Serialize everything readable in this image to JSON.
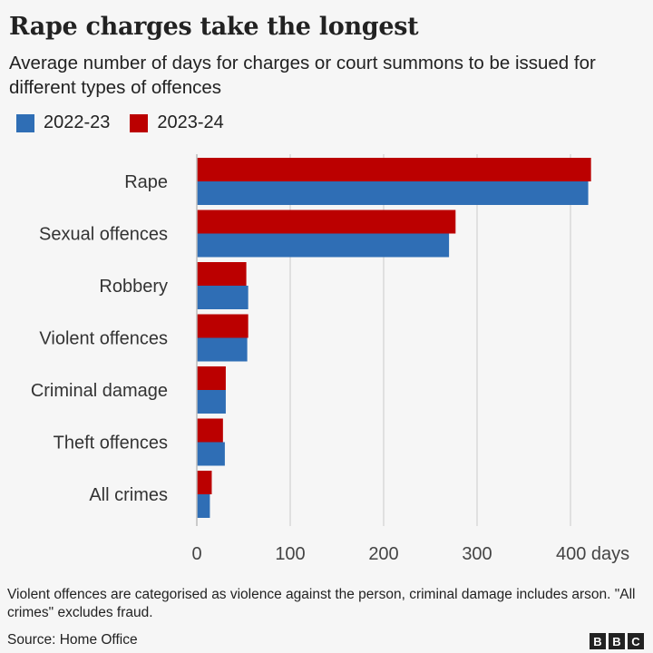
{
  "chart_data": {
    "type": "bar",
    "orientation": "horizontal",
    "title": "Rape charges take the longest",
    "subtitle": "Average number of days for charges or court summons to be issued for different types of offences",
    "categories": [
      "Rape",
      "Sexual offences",
      "Robbery",
      "Violent offences",
      "Criminal damage",
      "Theft offences",
      "All crimes"
    ],
    "series": [
      {
        "name": "2022-23",
        "color": "#2f6eb5",
        "values": [
          419,
          270,
          55,
          54,
          31,
          30,
          14
        ]
      },
      {
        "name": "2023-24",
        "color": "#bb0000",
        "values": [
          422,
          277,
          53,
          55,
          31,
          28,
          16
        ]
      }
    ],
    "xlim": [
      0,
      440
    ],
    "xticks": [
      0,
      100,
      200,
      300,
      400
    ],
    "xtick_labels": [
      "0",
      "100",
      "200",
      "300",
      "400 days"
    ],
    "grid": true,
    "legend": "top-left"
  },
  "footer": {
    "note": "Violent offences are categorised as violence against the person, criminal damage includes arson. \"All crimes\" excludes fraud.",
    "source": "Source: Home Office",
    "logo": [
      "B",
      "B",
      "C"
    ]
  }
}
